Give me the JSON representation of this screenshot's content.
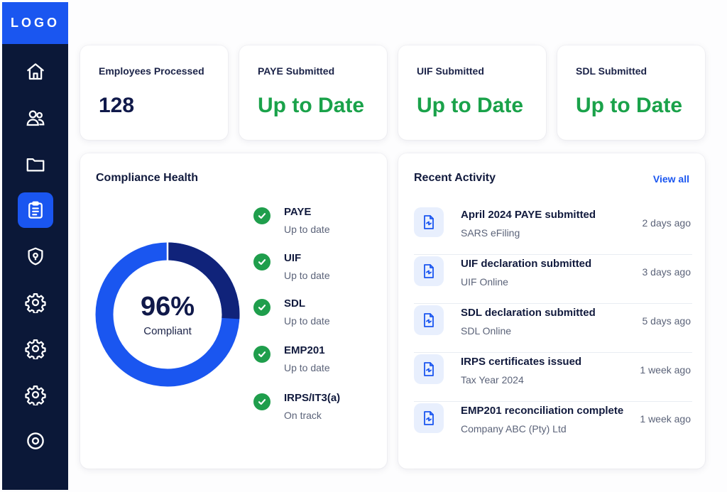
{
  "sidebar": {
    "logo": "LOGO",
    "items": [
      {
        "icon": "home-icon",
        "active": false
      },
      {
        "icon": "users-icon",
        "active": false
      },
      {
        "icon": "folder-icon",
        "active": false
      },
      {
        "icon": "clipboard-icon",
        "active": true
      },
      {
        "icon": "shield-icon",
        "active": false
      },
      {
        "icon": "gear-icon",
        "active": false
      },
      {
        "icon": "gear-icon",
        "active": false
      },
      {
        "icon": "gear-icon",
        "active": false
      },
      {
        "icon": "target-icon",
        "active": false
      }
    ]
  },
  "stats": [
    {
      "label": "Employees Processed",
      "value": "128"
    },
    {
      "label": "PAYE Submitted",
      "value": "Up to Date"
    },
    {
      "label": "UIF Submitted",
      "value": "Up to Date"
    },
    {
      "label": "SDL Submitted",
      "value": "Up to Date"
    }
  ],
  "compliance": {
    "title": "Compliance Health",
    "percent_label": "96%",
    "percent_value": 96,
    "caption": "Compliant",
    "items": [
      {
        "name": "PAYE",
        "status": "Up to date"
      },
      {
        "name": "UIF",
        "status": "Up to date"
      },
      {
        "name": "SDL",
        "status": "Up to date"
      },
      {
        "name": "EMP201",
        "status": "Up to date"
      },
      {
        "name": "IRPS/IT3(a)",
        "status": "On track"
      }
    ]
  },
  "activity": {
    "title": "Recent Activity",
    "view_all": "View all",
    "items": [
      {
        "title": "April 2024 PAYE submitted",
        "subtitle": "SARS eFiling",
        "time": "2 days ago"
      },
      {
        "title": "UIF declaration submitted",
        "subtitle": "UIF Online",
        "time": "3 days ago"
      },
      {
        "title": "SDL declaration submitted",
        "subtitle": "SDL Online",
        "time": "5 days ago"
      },
      {
        "title": "IRPS certificates issued",
        "subtitle": "Tax Year 2024",
        "time": "1 week ago"
      },
      {
        "title": "EMP201 reconciliation complete",
        "subtitle": "Company ABC (Pty) Ltd",
        "time": "1 week ago"
      }
    ]
  },
  "colors": {
    "sidebar": "#0b1838",
    "accent": "#1a56f0",
    "success": "#1aa24a",
    "donut_main": "#1a56f0",
    "donut_segment": "#10237a"
  }
}
